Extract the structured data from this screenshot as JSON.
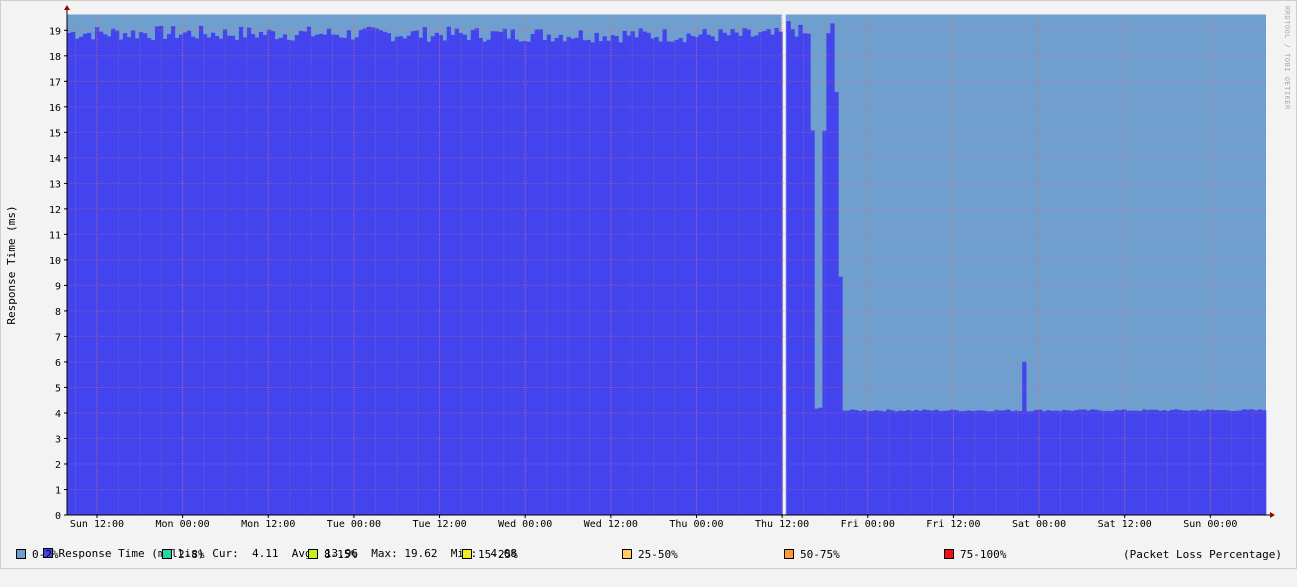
{
  "chart_data": {
    "type": "area",
    "ylabel": "Response Time (ms)",
    "watermark": "RRDTOOL / TOBI OETIKER",
    "ylim": [
      0,
      19.6
    ],
    "yticks": [
      0,
      1,
      2,
      3,
      4,
      5,
      6,
      7,
      8,
      9,
      10,
      11,
      12,
      13,
      14,
      15,
      16,
      17,
      18,
      19
    ],
    "x_range_hours": [
      0,
      168
    ],
    "x_ticks": [
      {
        "label": "Sun 12:00",
        "hour": 4.2
      },
      {
        "label": "Mon 00:00",
        "hour": 16.2
      },
      {
        "label": "Mon 12:00",
        "hour": 28.2
      },
      {
        "label": "Tue 00:00",
        "hour": 40.2
      },
      {
        "label": "Tue 12:00",
        "hour": 52.2
      },
      {
        "label": "Wed 00:00",
        "hour": 64.2
      },
      {
        "label": "Wed 12:00",
        "hour": 76.2
      },
      {
        "label": "Thu 00:00",
        "hour": 88.2
      },
      {
        "label": "Thu 12:00",
        "hour": 100.2
      },
      {
        "label": "Fri 00:00",
        "hour": 112.2
      },
      {
        "label": "Fri 12:00",
        "hour": 124.2
      },
      {
        "label": "Sat 00:00",
        "hour": 136.2
      },
      {
        "label": "Sat 12:00",
        "hour": 148.2
      },
      {
        "label": "Sun 00:00",
        "hour": 160.2
      }
    ],
    "gap_hours": [
      100.1,
      100.7
    ],
    "series": [
      {
        "name": "Response Time (millis)",
        "color": "#4444ee",
        "breakpoints": [
          [
            0,
            18.9
          ],
          [
            99.8,
            18.8
          ],
          [
            100.8,
            19.2
          ],
          [
            103.7,
            18.8
          ],
          [
            104.4,
            18.7
          ],
          [
            104.5,
            9.8
          ],
          [
            105.0,
            4.15
          ],
          [
            105.8,
            4.2
          ],
          [
            106.0,
            14.1
          ],
          [
            106.6,
            18.9
          ],
          [
            107.5,
            19.1
          ],
          [
            108.2,
            12.9
          ],
          [
            108.6,
            4.1
          ],
          [
            133.8,
            4.1
          ],
          [
            134.0,
            7.3
          ],
          [
            134.3,
            4.1
          ],
          [
            168,
            4.11
          ]
        ]
      }
    ],
    "band_top": 19.62,
    "band_color": "#6f9fcf",
    "stats": {
      "cur": "4.11",
      "avg": "13.96",
      "max": "19.62",
      "min": "4.08"
    },
    "loss_legend": [
      {
        "label": "0-2%",
        "color": "#6f9fcf"
      },
      {
        "label": "2-8%",
        "color": "#22d6a6"
      },
      {
        "label": "8-15%",
        "color": "#c4ee22"
      },
      {
        "label": "15-25%",
        "color": "#eeee22"
      },
      {
        "label": "25-50%",
        "color": "#ffcc66"
      },
      {
        "label": "50-75%",
        "color": "#ff9933"
      },
      {
        "label": "75-100%",
        "color": "#ee1111"
      }
    ],
    "loss_caption": "(Packet Loss Percentage)"
  },
  "labels": {
    "cur_label": "Cur:",
    "avg_label": "Avg:",
    "max_label": "Max:",
    "min_label": "Min:"
  }
}
